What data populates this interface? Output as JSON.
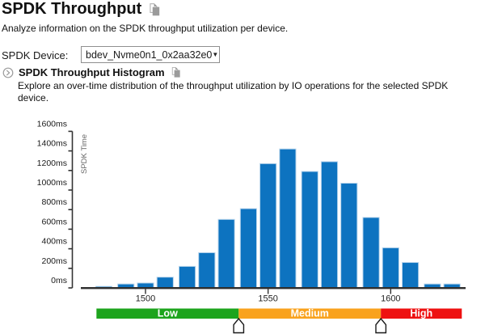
{
  "page": {
    "title": "SPDK Throughput",
    "subtitle": "Analyze information on the SPDK throughput utilization per device."
  },
  "device": {
    "label": "SPDK Device:",
    "value": "bdev_Nvme0n1_0x2aa32e0",
    "caret": "▼"
  },
  "section": {
    "title": "SPDK Throughput Histogram",
    "description": "Explore an over-time distribution of the throughput utilization by IO operations for the selected SPDK device."
  },
  "icons": {
    "title_copy": "copy-icon",
    "section_toggle": "chevron-right-circle-icon",
    "section_copy": "copy-icon",
    "select_caret": "chevron-down-icon"
  },
  "chart_data": {
    "type": "bar",
    "title": "SPDK Throughput Histogram",
    "xlabel": "",
    "ylabel": "SPDK Time",
    "y_unit": "ms",
    "ylim": [
      0,
      1600
    ],
    "y_tick_step": 200,
    "y_tick_labels": [
      "0ms",
      "200ms",
      "400ms",
      "600ms",
      "800ms",
      "1000ms",
      "1200ms",
      "1400ms",
      "1600ms"
    ],
    "x_ticks": [
      1500,
      1550,
      1600
    ],
    "xlim": [
      1476,
      1632
    ],
    "grid": false,
    "legend_position": "none",
    "bin_centers": [
      1483,
      1492,
      1500,
      1508,
      1517,
      1525,
      1533,
      1542,
      1550,
      1558,
      1567,
      1575,
      1583,
      1592,
      1600,
      1608,
      1617,
      1625
    ],
    "values": [
      15,
      40,
      50,
      110,
      220,
      360,
      700,
      810,
      1270,
      1420,
      1190,
      1290,
      1070,
      720,
      410,
      260,
      40,
      40
    ],
    "bar_color": "#0d73c0",
    "bar_stroke": "#b9d5ec",
    "axis_color": "#2e2e2e",
    "range_bands": [
      {
        "label": "Low",
        "from": 1480,
        "to": 1538,
        "color": "#1da41d"
      },
      {
        "label": "Medium",
        "from": 1538,
        "to": 1596,
        "color": "#f9a21d"
      },
      {
        "label": "High",
        "from": 1596,
        "to": 1629,
        "color": "#ee1111"
      }
    ],
    "slider_values": [
      1538,
      1596
    ]
  }
}
